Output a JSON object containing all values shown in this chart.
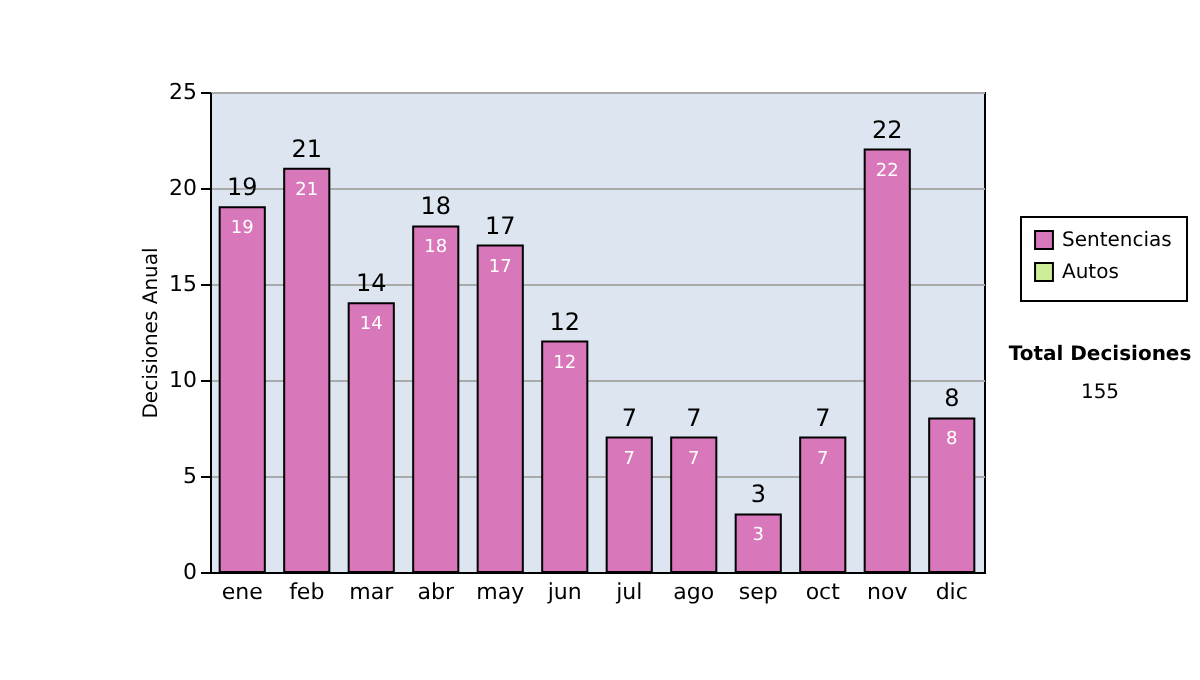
{
  "chart_data": {
    "type": "bar",
    "ylabel": "Decisiones Anual",
    "categories": [
      "ene",
      "feb",
      "mar",
      "abr",
      "may",
      "jun",
      "jul",
      "ago",
      "sep",
      "oct",
      "nov",
      "dic"
    ],
    "series": [
      {
        "name": "Sentencias",
        "color": "#d877b9",
        "values": [
          19,
          21,
          14,
          18,
          17,
          12,
          7,
          7,
          3,
          7,
          22,
          8
        ]
      },
      {
        "name": "Autos",
        "color": "#ccee99",
        "values": [
          null,
          null,
          null,
          null,
          null,
          null,
          null,
          null,
          null,
          null,
          null,
          null
        ]
      }
    ],
    "ylim": [
      0,
      25
    ],
    "yticks": [
      0,
      5,
      10,
      15,
      20,
      25
    ],
    "grid": "y",
    "legend": "right",
    "data_labels": true,
    "annotations": [
      "Total Decisiones",
      "155",
      {
        "text": "19",
        "x": "ene",
        "y": 19
      },
      {
        "text": "21",
        "x": "feb",
        "y": 21
      },
      {
        "text": "14",
        "x": "mar",
        "y": 14
      },
      {
        "text": "18",
        "x": "abr",
        "y": 18
      },
      {
        "text": "17",
        "x": "may",
        "y": 17
      },
      {
        "text": "12",
        "x": "jun",
        "y": 12
      },
      {
        "text": "7",
        "x": "jul",
        "y": 7
      },
      {
        "text": "7",
        "x": "ago",
        "y": 7
      },
      {
        "text": "3",
        "x": "sep",
        "y": 3
      },
      {
        "text": "7",
        "x": "oct",
        "y": 7
      },
      {
        "text": "22",
        "x": "nov",
        "y": 22
      },
      {
        "text": "8",
        "x": "dic",
        "y": 8
      }
    ]
  }
}
